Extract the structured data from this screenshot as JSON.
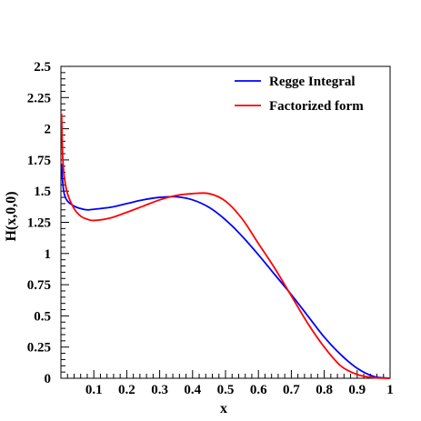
{
  "chart_data": {
    "type": "line",
    "title": "",
    "xlabel": "x",
    "ylabel": "H(x,0,0)",
    "xlim": [
      0,
      1
    ],
    "ylim": [
      0,
      2.5
    ],
    "grid": false,
    "legend_position": "top-right",
    "x_tick_labels": [
      "0.1",
      "0.2",
      "0.3",
      "0.4",
      "0.5",
      "0.6",
      "0.7",
      "0.8",
      "0.9",
      "1"
    ],
    "y_tick_labels": [
      "0",
      "0.25",
      "0.5",
      "0.75",
      "1",
      "1.25",
      "1.5",
      "1.75",
      "2",
      "2.25",
      "2.5"
    ],
    "series": [
      {
        "name": "Regge Integral",
        "color": "#0000ff",
        "x": [
          0.002,
          0.005,
          0.01,
          0.02,
          0.04,
          0.06,
          0.08,
          0.1,
          0.15,
          0.2,
          0.25,
          0.3,
          0.35,
          0.4,
          0.45,
          0.5,
          0.55,
          0.6,
          0.65,
          0.7,
          0.75,
          0.8,
          0.85,
          0.9,
          0.95,
          1.0
        ],
        "y": [
          1.72,
          1.58,
          1.48,
          1.42,
          1.38,
          1.36,
          1.35,
          1.355,
          1.37,
          1.4,
          1.43,
          1.45,
          1.455,
          1.43,
          1.37,
          1.27,
          1.14,
          0.99,
          0.83,
          0.67,
          0.5,
          0.33,
          0.19,
          0.08,
          0.015,
          0.0
        ]
      },
      {
        "name": "Factorized form",
        "color": "#ff0000",
        "x": [
          0.002,
          0.005,
          0.01,
          0.02,
          0.04,
          0.06,
          0.08,
          0.1,
          0.15,
          0.2,
          0.25,
          0.3,
          0.35,
          0.4,
          0.45,
          0.5,
          0.55,
          0.6,
          0.65,
          0.7,
          0.75,
          0.8,
          0.85,
          0.9,
          0.95,
          1.0
        ],
        "y": [
          2.12,
          1.8,
          1.62,
          1.48,
          1.36,
          1.3,
          1.275,
          1.265,
          1.285,
          1.33,
          1.38,
          1.43,
          1.465,
          1.48,
          1.48,
          1.42,
          1.28,
          1.08,
          0.88,
          0.66,
          0.44,
          0.25,
          0.1,
          0.03,
          0.005,
          0.0
        ]
      }
    ]
  }
}
